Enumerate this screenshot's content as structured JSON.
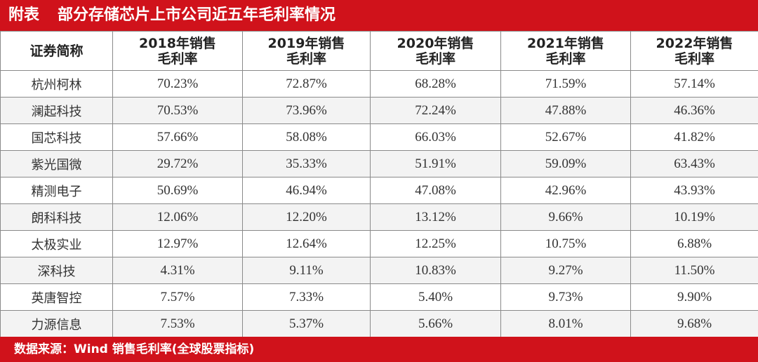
{
  "header": {
    "prefix": "附表",
    "title": "部分存储芯片上市公司近五年毛利率情况"
  },
  "table": {
    "columns": [
      {
        "line1": "证券简称",
        "line2": ""
      },
      {
        "line1": "2018年销售",
        "line2": "毛利率"
      },
      {
        "line1": "2019年销售",
        "line2": "毛利率"
      },
      {
        "line1": "2020年销售",
        "line2": "毛利率"
      },
      {
        "line1": "2021年销售",
        "line2": "毛利率"
      },
      {
        "line1": "2022年销售",
        "line2": "毛利率"
      }
    ],
    "rows": [
      [
        "杭州柯林",
        "70.23%",
        "72.87%",
        "68.28%",
        "71.59%",
        "57.14%"
      ],
      [
        "澜起科技",
        "70.53%",
        "73.96%",
        "72.24%",
        "47.88%",
        "46.36%"
      ],
      [
        "国芯科技",
        "57.66%",
        "58.08%",
        "66.03%",
        "52.67%",
        "41.82%"
      ],
      [
        "紫光国微",
        "29.72%",
        "35.33%",
        "51.91%",
        "59.09%",
        "63.43%"
      ],
      [
        "精测电子",
        "50.69%",
        "46.94%",
        "47.08%",
        "42.96%",
        "43.93%"
      ],
      [
        "朗科科技",
        "12.06%",
        "12.20%",
        "13.12%",
        "9.66%",
        "10.19%"
      ],
      [
        "太极实业",
        "12.97%",
        "12.64%",
        "12.25%",
        "10.75%",
        "6.88%"
      ],
      [
        "深科技",
        "4.31%",
        "9.11%",
        "10.83%",
        "9.27%",
        "11.50%"
      ],
      [
        "英唐智控",
        "7.57%",
        "7.33%",
        "5.40%",
        "9.73%",
        "9.90%"
      ],
      [
        "力源信息",
        "7.53%",
        "5.37%",
        "5.66%",
        "8.01%",
        "9.68%"
      ]
    ]
  },
  "footer": {
    "source": "数据来源：Wind 销售毛利率(全球股票指标)"
  },
  "colors": {
    "brand_red": "#d0121b",
    "header_text": "#ffffff",
    "stripe": "#f3f3f3",
    "grid": "#8a8a8a"
  }
}
